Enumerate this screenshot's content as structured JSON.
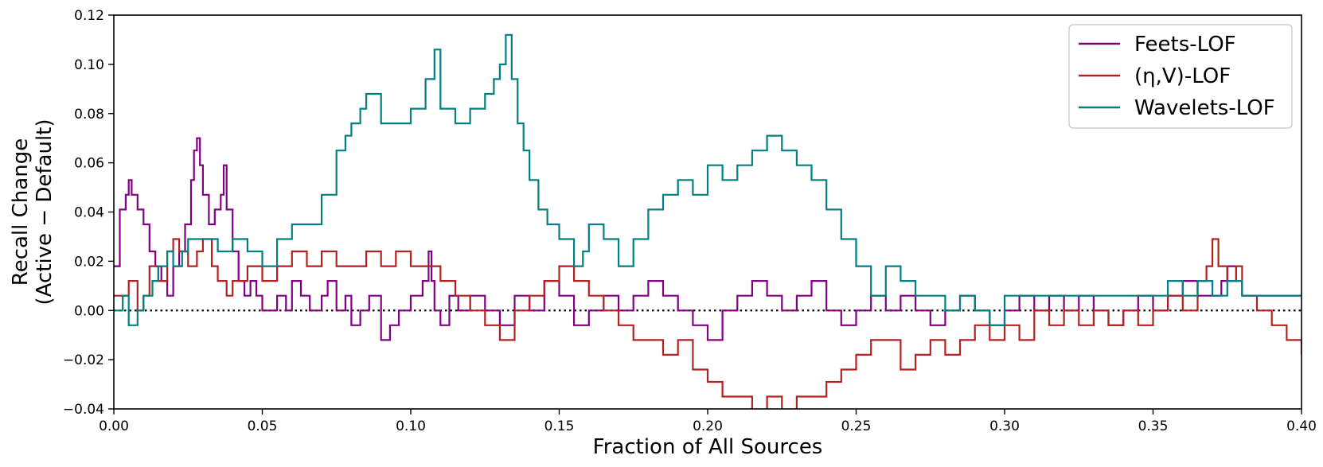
{
  "chart_data": {
    "type": "line",
    "title": "",
    "xlabel": "Fraction of All Sources",
    "ylabel_line1": "Recall Change",
    "ylabel_line2": "(Active − Default)",
    "xlim": [
      0.0,
      0.4
    ],
    "ylim": [
      -0.04,
      0.12
    ],
    "xticks": [
      0.0,
      0.05,
      0.1,
      0.15,
      0.2,
      0.25,
      0.3,
      0.35,
      0.4
    ],
    "xtick_labels": [
      "0.00",
      "0.05",
      "0.10",
      "0.15",
      "0.20",
      "0.25",
      "0.30",
      "0.35",
      "0.40"
    ],
    "yticks": [
      -0.04,
      -0.02,
      0.0,
      0.02,
      0.04,
      0.06,
      0.08,
      0.1,
      0.12
    ],
    "ytick_labels": [
      "−0.04",
      "−0.02",
      "0.00",
      "0.02",
      "0.04",
      "0.06",
      "0.08",
      "0.10",
      "0.12"
    ],
    "grid": false,
    "legend_position": "top-right",
    "reference_line": {
      "y": 0.0,
      "style": "dotted",
      "color": "#000000"
    },
    "series": [
      {
        "name": "Feets-LOF",
        "color": "#800080",
        "x": [
          0.0,
          0.002,
          0.004,
          0.005,
          0.006,
          0.008,
          0.01,
          0.012,
          0.014,
          0.016,
          0.018,
          0.02,
          0.022,
          0.024,
          0.026,
          0.027,
          0.028,
          0.029,
          0.03,
          0.032,
          0.034,
          0.036,
          0.037,
          0.038,
          0.04,
          0.042,
          0.044,
          0.046,
          0.048,
          0.05,
          0.055,
          0.058,
          0.06,
          0.063,
          0.066,
          0.07,
          0.072,
          0.075,
          0.078,
          0.08,
          0.083,
          0.086,
          0.09,
          0.093,
          0.096,
          0.1,
          0.104,
          0.106,
          0.107,
          0.108,
          0.11,
          0.113,
          0.116,
          0.12,
          0.125,
          0.13,
          0.135,
          0.14,
          0.145,
          0.15,
          0.155,
          0.16,
          0.165,
          0.17,
          0.175,
          0.18,
          0.185,
          0.19,
          0.195,
          0.2,
          0.205,
          0.21,
          0.215,
          0.22,
          0.225,
          0.23,
          0.235,
          0.24,
          0.245,
          0.25,
          0.255,
          0.26,
          0.265,
          0.27,
          0.275,
          0.28,
          0.285,
          0.29,
          0.295,
          0.3,
          0.305,
          0.31,
          0.315,
          0.32,
          0.325,
          0.33,
          0.335,
          0.34,
          0.345,
          0.35,
          0.355,
          0.36,
          0.365,
          0.37,
          0.373,
          0.375,
          0.378,
          0.38,
          0.385,
          0.39,
          0.395,
          0.4
        ],
        "y": [
          0.018,
          0.041,
          0.047,
          0.053,
          0.047,
          0.041,
          0.035,
          0.024,
          0.018,
          0.012,
          0.006,
          0.018,
          0.024,
          0.035,
          0.053,
          0.065,
          0.07,
          0.059,
          0.047,
          0.035,
          0.041,
          0.047,
          0.059,
          0.041,
          0.024,
          0.012,
          0.006,
          0.012,
          0.006,
          0.0,
          0.006,
          0.0,
          0.012,
          0.006,
          0.0,
          0.006,
          0.012,
          0.0,
          0.006,
          -0.006,
          0.0,
          0.006,
          -0.012,
          -0.006,
          0.0,
          0.006,
          0.012,
          0.024,
          0.012,
          0.0,
          -0.006,
          0.006,
          0.0,
          0.006,
          0.0,
          -0.006,
          0.006,
          0.0,
          0.012,
          0.006,
          -0.006,
          0.0,
          0.006,
          0.0,
          0.006,
          0.012,
          0.006,
          0.0,
          -0.006,
          -0.012,
          0.0,
          0.006,
          0.012,
          0.006,
          0.0,
          0.006,
          0.012,
          0.0,
          -0.006,
          0.0,
          0.006,
          0.0,
          0.006,
          0.0,
          -0.006,
          0.0,
          0.006,
          0.0,
          -0.006,
          0.0,
          0.006,
          0.0,
          0.006,
          0.0,
          0.006,
          0.0,
          -0.006,
          0.0,
          0.006,
          0.0,
          0.006,
          0.012,
          0.006,
          0.006,
          0.012,
          0.018,
          0.012,
          0.006,
          0.006,
          0.006,
          0.006,
          0.006
        ]
      },
      {
        "name": "(η,V)-LOF",
        "color": "#b22222",
        "x": [
          0.0,
          0.005,
          0.008,
          0.01,
          0.012,
          0.015,
          0.018,
          0.02,
          0.022,
          0.025,
          0.028,
          0.03,
          0.033,
          0.035,
          0.038,
          0.04,
          0.045,
          0.05,
          0.055,
          0.06,
          0.065,
          0.07,
          0.075,
          0.08,
          0.085,
          0.09,
          0.095,
          0.1,
          0.105,
          0.11,
          0.115,
          0.12,
          0.125,
          0.13,
          0.135,
          0.14,
          0.145,
          0.15,
          0.155,
          0.16,
          0.165,
          0.17,
          0.175,
          0.18,
          0.185,
          0.19,
          0.195,
          0.2,
          0.205,
          0.21,
          0.215,
          0.22,
          0.225,
          0.23,
          0.235,
          0.24,
          0.245,
          0.25,
          0.255,
          0.26,
          0.265,
          0.27,
          0.275,
          0.28,
          0.285,
          0.29,
          0.295,
          0.3,
          0.305,
          0.31,
          0.315,
          0.32,
          0.325,
          0.33,
          0.335,
          0.34,
          0.345,
          0.35,
          0.355,
          0.36,
          0.365,
          0.368,
          0.37,
          0.372,
          0.375,
          0.378,
          0.38,
          0.385,
          0.39,
          0.395,
          0.4
        ],
        "y": [
          0.006,
          0.012,
          0.0,
          0.006,
          0.018,
          0.012,
          0.024,
          0.029,
          0.024,
          0.018,
          0.024,
          0.029,
          0.018,
          0.012,
          0.006,
          0.012,
          0.018,
          0.012,
          0.018,
          0.024,
          0.018,
          0.024,
          0.018,
          0.018,
          0.024,
          0.018,
          0.024,
          0.018,
          0.018,
          0.012,
          0.006,
          0.0,
          -0.006,
          -0.012,
          0.0,
          0.006,
          0.012,
          0.018,
          0.012,
          0.006,
          0.0,
          -0.006,
          -0.012,
          -0.012,
          -0.018,
          -0.012,
          -0.024,
          -0.029,
          -0.035,
          -0.035,
          -0.041,
          -0.035,
          -0.041,
          -0.035,
          -0.035,
          -0.029,
          -0.024,
          -0.018,
          -0.012,
          -0.012,
          -0.024,
          -0.018,
          -0.012,
          -0.018,
          -0.012,
          -0.006,
          -0.012,
          -0.006,
          -0.012,
          0.0,
          -0.006,
          0.0,
          -0.006,
          0.0,
          -0.006,
          0.0,
          -0.006,
          0.0,
          0.006,
          0.0,
          0.012,
          0.018,
          0.029,
          0.018,
          0.012,
          0.018,
          0.006,
          0.0,
          -0.006,
          -0.012,
          -0.018
        ]
      },
      {
        "name": "Wavelets-LOF",
        "color": "#008080",
        "x": [
          0.0,
          0.003,
          0.005,
          0.008,
          0.01,
          0.013,
          0.015,
          0.018,
          0.02,
          0.023,
          0.025,
          0.03,
          0.035,
          0.04,
          0.045,
          0.05,
          0.055,
          0.06,
          0.065,
          0.07,
          0.075,
          0.078,
          0.08,
          0.083,
          0.085,
          0.09,
          0.095,
          0.1,
          0.105,
          0.108,
          0.11,
          0.115,
          0.12,
          0.125,
          0.128,
          0.13,
          0.132,
          0.134,
          0.136,
          0.138,
          0.14,
          0.143,
          0.146,
          0.15,
          0.155,
          0.158,
          0.16,
          0.165,
          0.17,
          0.175,
          0.18,
          0.185,
          0.19,
          0.195,
          0.2,
          0.205,
          0.21,
          0.215,
          0.22,
          0.225,
          0.23,
          0.235,
          0.24,
          0.245,
          0.25,
          0.255,
          0.26,
          0.265,
          0.27,
          0.275,
          0.28,
          0.285,
          0.29,
          0.295,
          0.3,
          0.305,
          0.31,
          0.315,
          0.32,
          0.325,
          0.33,
          0.335,
          0.34,
          0.345,
          0.35,
          0.355,
          0.36,
          0.365,
          0.37,
          0.375,
          0.38,
          0.385,
          0.39,
          0.395,
          0.4
        ],
        "y": [
          0.0,
          0.006,
          -0.006,
          0.0,
          0.006,
          0.012,
          0.018,
          0.024,
          0.018,
          0.024,
          0.029,
          0.029,
          0.024,
          0.029,
          0.024,
          0.018,
          0.029,
          0.035,
          0.035,
          0.047,
          0.065,
          0.071,
          0.076,
          0.082,
          0.088,
          0.076,
          0.076,
          0.082,
          0.094,
          0.106,
          0.082,
          0.076,
          0.082,
          0.088,
          0.094,
          0.1,
          0.112,
          0.094,
          0.076,
          0.065,
          0.053,
          0.041,
          0.035,
          0.029,
          0.018,
          0.024,
          0.035,
          0.029,
          0.018,
          0.029,
          0.041,
          0.047,
          0.053,
          0.047,
          0.059,
          0.053,
          0.059,
          0.065,
          0.071,
          0.065,
          0.059,
          0.053,
          0.041,
          0.029,
          0.018,
          0.006,
          0.018,
          0.012,
          0.006,
          0.006,
          0.0,
          0.006,
          0.0,
          -0.006,
          0.006,
          0.006,
          0.006,
          0.006,
          0.006,
          0.006,
          0.006,
          0.006,
          0.006,
          0.006,
          0.006,
          0.012,
          0.006,
          0.012,
          0.006,
          0.012,
          0.006,
          0.006,
          0.006,
          0.006,
          0.006
        ]
      }
    ]
  }
}
